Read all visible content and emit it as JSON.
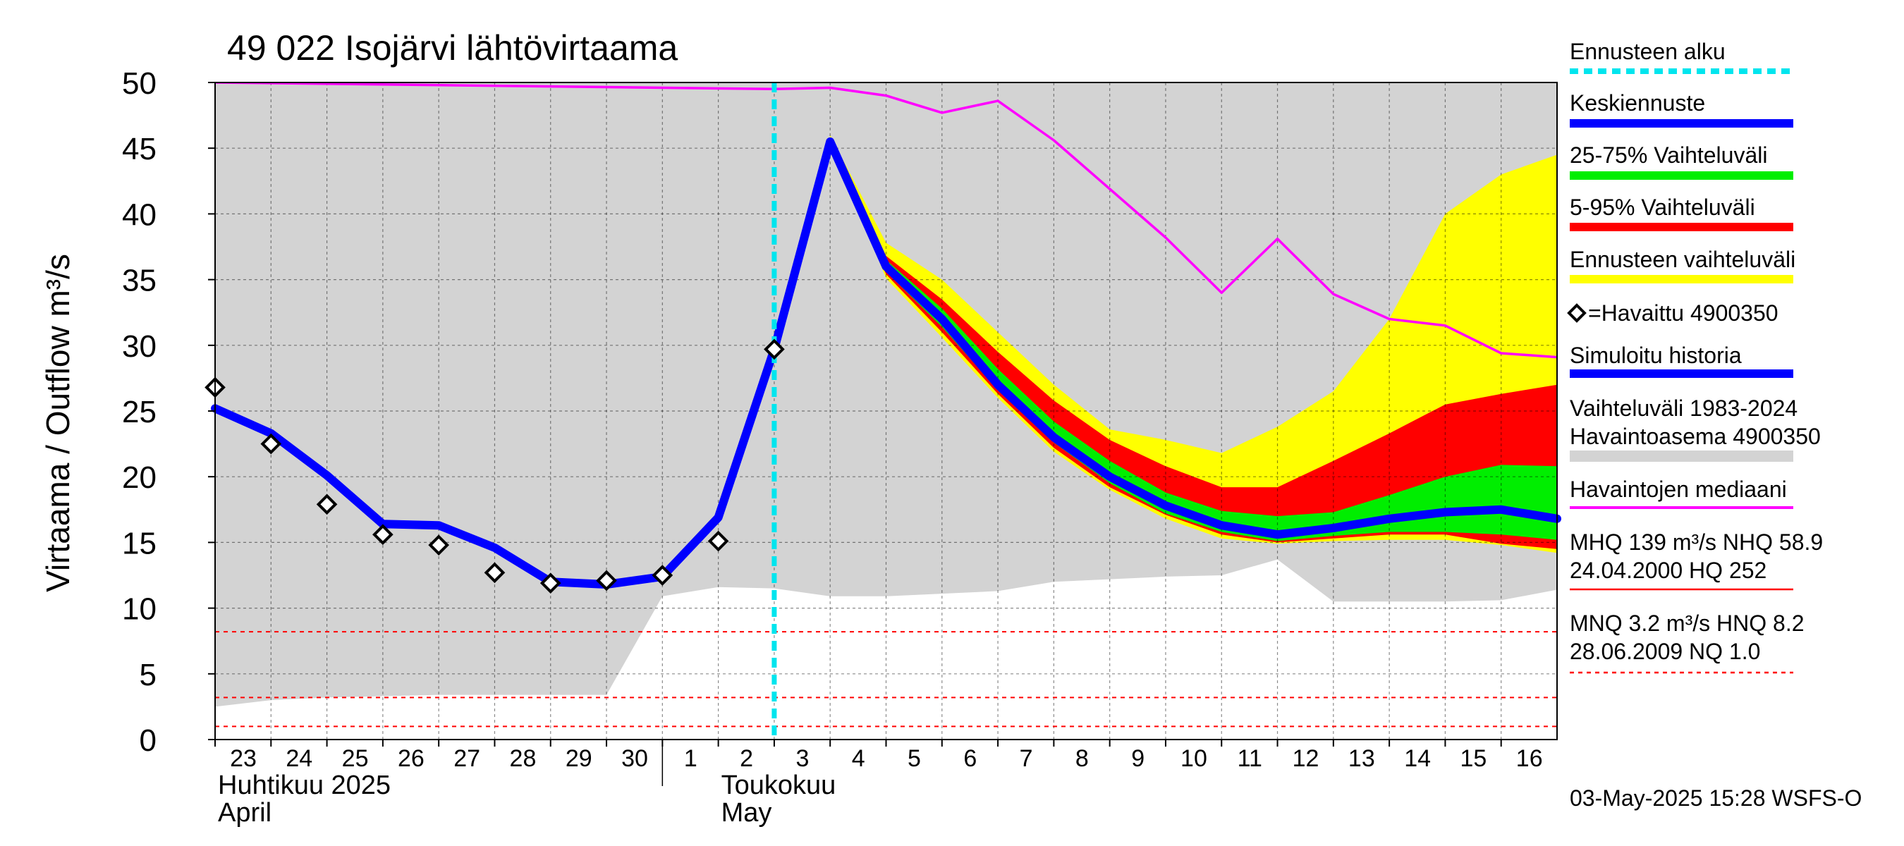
{
  "chart_data": {
    "type": "line",
    "title": "49 022 Isojärvi lähtövirtaama",
    "ylabel": "Virtaama / Outflow    m³/s",
    "ylim": [
      0,
      50
    ],
    "yticks": [
      0,
      5,
      10,
      15,
      20,
      25,
      30,
      35,
      40,
      45,
      50
    ],
    "xlim": [
      0,
      24
    ],
    "forecast_start": 10,
    "days": [
      {
        "x": 0,
        "label": "23"
      },
      {
        "x": 1,
        "label": "24"
      },
      {
        "x": 2,
        "label": "25"
      },
      {
        "x": 3,
        "label": "26"
      },
      {
        "x": 4,
        "label": "27"
      },
      {
        "x": 5,
        "label": "28"
      },
      {
        "x": 6,
        "label": "29"
      },
      {
        "x": 7,
        "label": "30"
      },
      {
        "x": 8,
        "label": "1"
      },
      {
        "x": 9,
        "label": "2"
      },
      {
        "x": 10,
        "label": "3"
      },
      {
        "x": 11,
        "label": "4"
      },
      {
        "x": 12,
        "label": "5"
      },
      {
        "x": 13,
        "label": "6"
      },
      {
        "x": 14,
        "label": "7"
      },
      {
        "x": 15,
        "label": "8"
      },
      {
        "x": 16,
        "label": "9"
      },
      {
        "x": 17,
        "label": "10"
      },
      {
        "x": 18,
        "label": "11"
      },
      {
        "x": 19,
        "label": "12"
      },
      {
        "x": 20,
        "label": "13"
      },
      {
        "x": 21,
        "label": "14"
      },
      {
        "x": 22,
        "label": "15"
      },
      {
        "x": 23,
        "label": "16"
      }
    ],
    "months": [
      {
        "x": 0,
        "line1": "Huhtikuu  2025",
        "line2": "April"
      },
      {
        "x": 9,
        "line1": "Toukokuu",
        "line2": "May"
      }
    ],
    "month_separator_x": 8,
    "history_range": {
      "x": [
        0,
        1,
        2,
        3,
        4,
        5,
        6,
        7,
        8,
        9,
        10,
        11,
        12,
        13,
        14,
        15,
        16,
        17,
        18,
        19,
        20,
        21,
        22,
        23,
        24
      ],
      "upper": [
        50,
        50,
        50,
        50,
        50,
        50,
        50,
        50,
        50,
        50,
        50,
        50,
        50,
        50,
        50,
        50,
        50,
        50,
        50,
        50,
        50,
        50,
        50,
        50,
        50
      ],
      "lower": [
        2.5,
        3,
        3.2,
        3.3,
        3.4,
        3.4,
        3.4,
        3.4,
        10.9,
        11.6,
        11.5,
        10.9,
        10.9,
        11.1,
        11.3,
        12.0,
        12.2,
        12.4,
        12.5,
        13.7,
        10.5,
        10.5,
        10.5,
        10.6,
        11.4
      ]
    },
    "forecast_full_range": {
      "x": [
        11,
        12,
        13,
        14,
        15,
        16,
        17,
        18,
        19,
        20,
        21,
        22,
        23,
        24
      ],
      "upper": [
        46.0,
        37.8,
        35.0,
        31.0,
        27.0,
        23.6,
        22.8,
        21.8,
        23.8,
        26.5,
        32.0,
        40.0,
        43.0,
        44.5
      ],
      "lower": [
        45.5,
        35.1,
        30.6,
        26.0,
        21.9,
        19.0,
        16.8,
        15.3,
        14.9,
        15.1,
        15.2,
        15.2,
        14.8,
        14.2
      ]
    },
    "forecast_5_95": {
      "x": [
        11,
        12,
        13,
        14,
        15,
        16,
        17,
        18,
        19,
        20,
        21,
        22,
        23,
        24
      ],
      "upper": [
        45.6,
        36.8,
        33.5,
        29.5,
        25.8,
        22.8,
        20.8,
        19.2,
        19.2,
        21.2,
        23.3,
        25.5,
        26.3,
        27.0
      ],
      "lower": [
        45.5,
        35.4,
        31.0,
        26.3,
        22.2,
        19.2,
        17.1,
        15.6,
        15.0,
        15.3,
        15.6,
        15.6,
        14.9,
        14.5
      ]
    },
    "forecast_25_75": {
      "x": [
        11,
        12,
        13,
        14,
        15,
        16,
        17,
        18,
        19,
        20,
        21,
        22,
        23,
        24
      ],
      "upper": [
        45.6,
        36.5,
        32.8,
        28.2,
        24.2,
        21.2,
        18.8,
        17.4,
        17.0,
        17.3,
        18.6,
        20.0,
        20.9,
        20.8
      ],
      "lower": [
        45.5,
        35.6,
        31.4,
        26.6,
        22.6,
        19.5,
        17.2,
        15.8,
        15.1,
        15.5,
        15.8,
        15.8,
        15.6,
        15.2
      ]
    },
    "series": [
      {
        "name": "Simuloitu historia / Keskiennuste",
        "color": "#0000ff",
        "x": [
          0,
          1,
          2,
          3,
          4,
          5,
          6,
          7,
          8,
          9,
          10,
          11,
          12,
          13,
          14,
          15,
          16,
          17,
          18,
          19,
          20,
          21,
          22,
          23,
          24
        ],
        "y": [
          25.2,
          23.3,
          20.1,
          16.4,
          16.3,
          14.6,
          12.0,
          11.8,
          12.4,
          16.9,
          29.7,
          45.5,
          36.0,
          32.0,
          27.0,
          23.0,
          20.0,
          17.8,
          16.3,
          15.6,
          16.1,
          16.8,
          17.3,
          17.5,
          16.8
        ]
      },
      {
        "name": "Havaintojen mediaani",
        "color": "#ff00ff",
        "x": [
          0,
          10,
          11,
          12,
          13,
          14,
          15,
          16,
          17,
          18,
          19,
          20,
          21,
          22,
          23,
          24
        ],
        "y": [
          50,
          49.5,
          49.6,
          49.0,
          47.7,
          48.6,
          45.6,
          41.9,
          38.2,
          34.0,
          38.1,
          33.9,
          32.0,
          31.5,
          29.4,
          29.1
        ]
      }
    ],
    "observed": {
      "name": "Havaittu 4900350",
      "x": [
        0,
        1,
        2,
        3,
        4,
        5,
        6,
        7,
        8,
        9,
        10
      ],
      "y": [
        26.8,
        22.5,
        17.9,
        15.6,
        14.8,
        12.7,
        11.9,
        12.1,
        12.5,
        15.1,
        29.7
      ]
    },
    "reference_lines": [
      {
        "name": "HNQ",
        "value": 8.2,
        "color": "#ff0000"
      },
      {
        "name": "MNQ",
        "value": 3.2,
        "color": "#ff0000"
      },
      {
        "name": "NQ",
        "value": 1.0,
        "color": "#ff0000"
      }
    ],
    "colors": {
      "history": "#d3d3d3",
      "full": "#ffff00",
      "p5_95": "#ff0000",
      "p25_75": "#00ee00",
      "forecast_line": "#0000ff",
      "sim": "#0000ff",
      "median": "#ff00ff",
      "forecast_start": "#00e5ee",
      "grid": "#000000"
    },
    "legend": [
      {
        "kind": "dash",
        "color": "#00e5ee",
        "label": "Ennusteen alku"
      },
      {
        "kind": "line",
        "color": "#0000ff",
        "label": "Keskiennuste"
      },
      {
        "kind": "line",
        "color": "#00ee00",
        "label": "25-75% Vaihteluväli"
      },
      {
        "kind": "line",
        "color": "#ff0000",
        "label": "5-95% Vaihteluväli"
      },
      {
        "kind": "line",
        "color": "#ffff00",
        "label": "Ennusteen vaihteluväli"
      },
      {
        "kind": "marker",
        "color": "#000000",
        "label": "=Havaittu 4900350"
      },
      {
        "kind": "line",
        "color": "#0000ff",
        "label": "Simuloitu historia"
      },
      {
        "kind": "band",
        "color": "#d3d3d3",
        "label": "Vaihteluväli 1983-2024",
        "label2": " Havaintoasema 4900350"
      },
      {
        "kind": "thin",
        "color": "#ff00ff",
        "label": "Havaintojen mediaani"
      },
      {
        "kind": "thinred",
        "color": "#ff0000",
        "label": "MHQ  139 m³/s NHQ 58.9",
        "label2": "24.04.2000 HQ  252"
      },
      {
        "kind": "dashred",
        "color": "#ff0000",
        "label": "MNQ  3.2 m³/s HNQ  8.2",
        "label2": "28.06.2009 NQ  1.0"
      }
    ],
    "timestamp": "03-May-2025 15:28 WSFS-O"
  }
}
